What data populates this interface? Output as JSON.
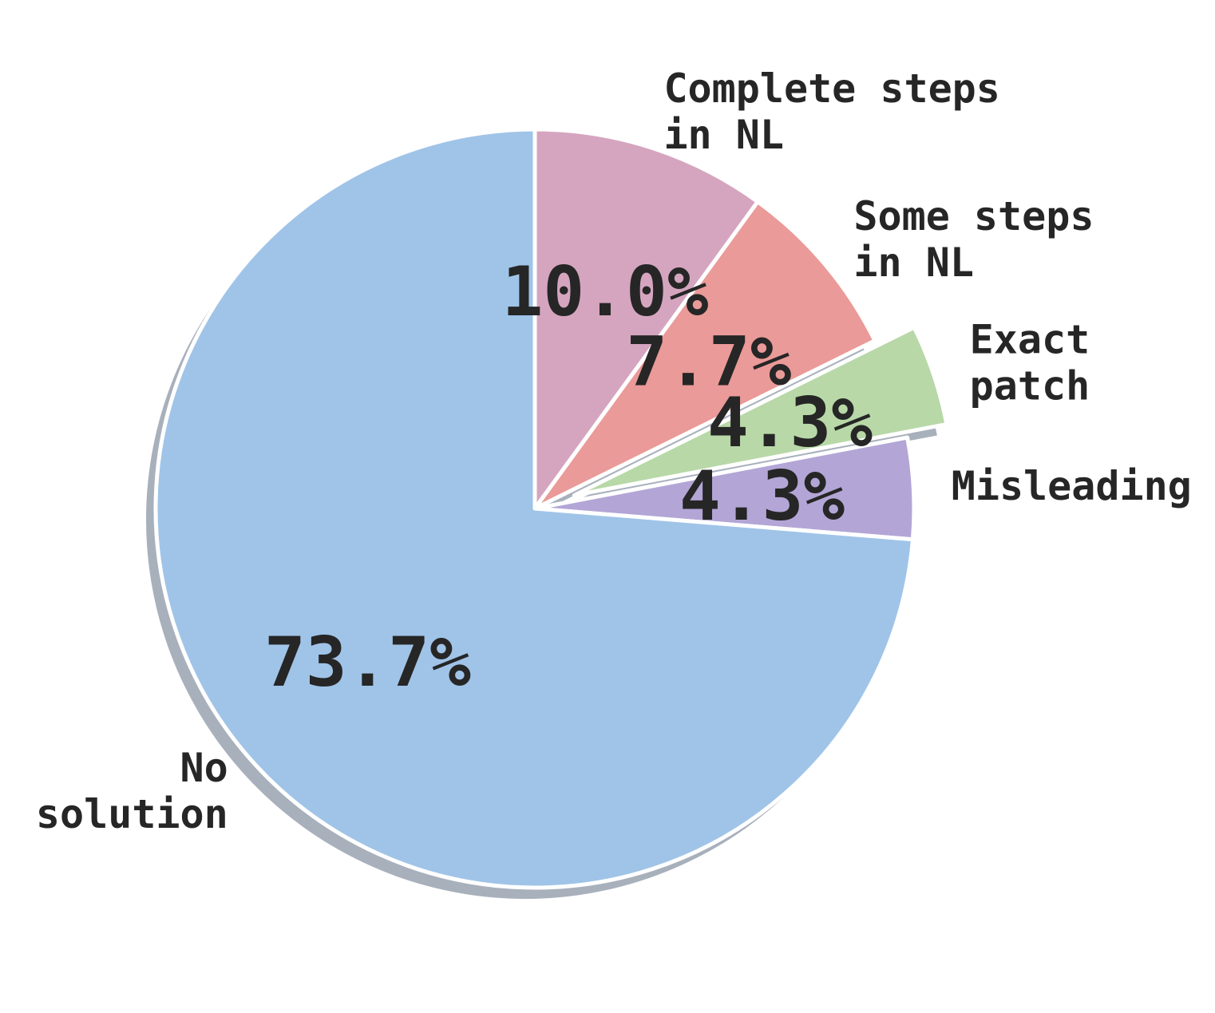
{
  "chart_data": {
    "type": "pie",
    "slices": [
      {
        "label": "Complete steps\nin NL",
        "value": 10.0,
        "pct_text": "10.0%",
        "color": "#d5a5bf",
        "explode": false
      },
      {
        "label": "Some steps\nin NL",
        "value": 7.7,
        "pct_text": "7.7%",
        "color": "#ea9a98",
        "explode": false
      },
      {
        "label": "Exact\npatch",
        "value": 4.3,
        "pct_text": "4.3%",
        "color": "#b8d8a8",
        "explode": true
      },
      {
        "label": "Misleading",
        "value": 4.3,
        "pct_text": "4.3%",
        "color": "#b3a6d6",
        "explode": false
      },
      {
        "label": "No\nsolution",
        "value": 73.7,
        "pct_text": "73.7%",
        "color": "#a0c4e8",
        "explode": false
      }
    ],
    "start_angle": 90,
    "direction": "clockwise",
    "shadow": true,
    "shadow_color": "#a8b0bc"
  }
}
